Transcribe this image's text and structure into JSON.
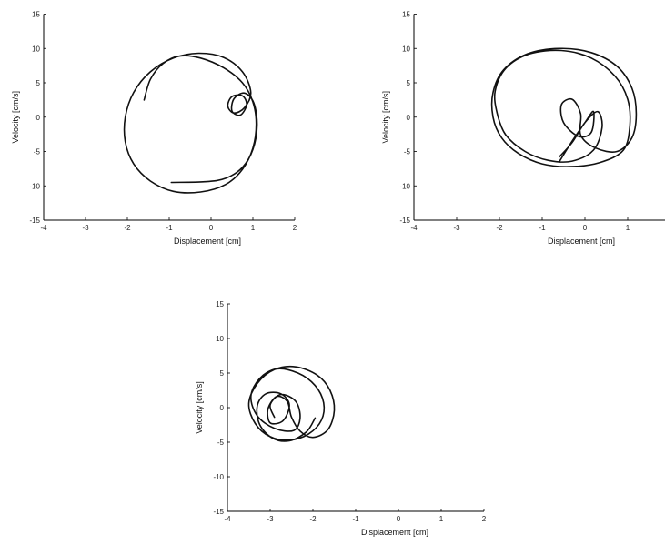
{
  "chart_data": [
    {
      "type": "line",
      "title": "",
      "xlabel": "Displacement [cm]",
      "ylabel": "Velocity [cm/s]",
      "xlim": [
        -4,
        2
      ],
      "ylim": [
        -15,
        15
      ],
      "x_ticks": [
        "-4",
        "-3",
        "-2",
        "-1",
        "0",
        "1",
        "2"
      ],
      "y_ticks": [
        "-15",
        "-10",
        "-5",
        "0",
        "5",
        "10",
        "15"
      ],
      "series": [
        {
          "points": [
            [
              -1.6,
              2.5
            ],
            [
              -1.45,
              5.5
            ],
            [
              -1.15,
              7.8
            ],
            [
              -0.75,
              8.9
            ],
            [
              -0.25,
              8.6
            ],
            [
              0.3,
              7.2
            ],
            [
              0.75,
              5.0
            ],
            [
              1.0,
              2.2
            ],
            [
              1.08,
              -1.0
            ],
            [
              1.0,
              -4.5
            ],
            [
              0.75,
              -7.6
            ],
            [
              0.35,
              -9.8
            ],
            [
              -0.25,
              -10.9
            ],
            [
              -0.9,
              -10.8
            ],
            [
              -1.45,
              -9.3
            ],
            [
              -1.85,
              -6.8
            ],
            [
              -2.05,
              -3.6
            ],
            [
              -2.05,
              0.0
            ],
            [
              -1.85,
              3.6
            ],
            [
              -1.45,
              6.6
            ],
            [
              -0.9,
              8.6
            ],
            [
              -0.3,
              9.3
            ],
            [
              0.3,
              8.7
            ],
            [
              0.75,
              6.6
            ],
            [
              0.95,
              3.6
            ],
            [
              0.8,
              1.4
            ],
            [
              0.55,
              0.6
            ],
            [
              0.4,
              1.6
            ],
            [
              0.5,
              3.0
            ],
            [
              0.75,
              3.1
            ],
            [
              0.85,
              1.8
            ],
            [
              0.7,
              0.3
            ],
            [
              0.5,
              0.9
            ],
            [
              0.55,
              2.7
            ],
            [
              0.8,
              3.5
            ],
            [
              1.02,
              2.1
            ],
            [
              1.1,
              -1.2
            ],
            [
              1.0,
              -4.7
            ],
            [
              0.75,
              -7.3
            ],
            [
              0.35,
              -8.9
            ],
            [
              -0.15,
              -9.4
            ],
            [
              -0.95,
              -9.5
            ]
          ]
        }
      ]
    },
    {
      "type": "line",
      "title": "",
      "xlabel": "Displacement [cm]",
      "ylabel": "Velocity [cm/s]",
      "xlim": [
        -4,
        2
      ],
      "ylim": [
        -15,
        15
      ],
      "x_ticks": [
        "-4",
        "-3",
        "-2",
        "-1",
        "0",
        "1"
      ],
      "y_ticks": [
        "-15",
        "-10",
        "-5",
        "0",
        "5",
        "10",
        "15"
      ],
      "series": [
        {
          "points": [
            [
              -0.6,
              -6.5
            ],
            [
              -0.3,
              -3.5
            ],
            [
              0.0,
              -0.8
            ],
            [
              0.2,
              0.8
            ],
            [
              0.15,
              -2.2
            ],
            [
              -0.15,
              -2.8
            ],
            [
              -0.5,
              -0.8
            ],
            [
              -0.55,
              1.8
            ],
            [
              -0.3,
              2.6
            ],
            [
              -0.1,
              0.5
            ],
            [
              -0.1,
              -2.6
            ],
            [
              0.25,
              -4.5
            ],
            [
              0.75,
              -5.0
            ],
            [
              1.1,
              -3.0
            ],
            [
              1.2,
              0.5
            ],
            [
              1.1,
              4.2
            ],
            [
              0.75,
              7.4
            ],
            [
              0.15,
              9.4
            ],
            [
              -0.6,
              10.0
            ],
            [
              -1.35,
              9.2
            ],
            [
              -1.9,
              6.9
            ],
            [
              -2.15,
              3.6
            ],
            [
              -2.15,
              0.0
            ],
            [
              -1.95,
              -3.0
            ],
            [
              -1.55,
              -5.3
            ],
            [
              -1.0,
              -6.8
            ],
            [
              -0.35,
              -7.2
            ],
            [
              0.35,
              -6.6
            ],
            [
              0.9,
              -4.8
            ],
            [
              1.05,
              -1.2
            ],
            [
              1.0,
              2.6
            ],
            [
              0.7,
              6.0
            ],
            [
              0.15,
              8.6
            ],
            [
              -0.55,
              9.7
            ],
            [
              -1.3,
              9.2
            ],
            [
              -1.85,
              7.1
            ],
            [
              -2.1,
              3.8
            ],
            [
              -2.05,
              0.5
            ],
            [
              -1.85,
              -2.6
            ],
            [
              -1.4,
              -5.0
            ],
            [
              -0.85,
              -6.3
            ],
            [
              -0.3,
              -6.4
            ],
            [
              0.2,
              -4.8
            ],
            [
              0.4,
              -1.5
            ],
            [
              0.3,
              0.8
            ],
            [
              0.0,
              -0.8
            ],
            [
              -0.3,
              -3.7
            ],
            [
              -0.6,
              -5.8
            ]
          ]
        }
      ]
    },
    {
      "type": "line",
      "title": "",
      "xlabel": "Displacement [cm]",
      "ylabel": "Velocity [cm/s]",
      "xlim": [
        -4,
        2
      ],
      "ylim": [
        -15,
        15
      ],
      "x_ticks": [
        "-4",
        "-3",
        "-2",
        "-1",
        "0",
        "1",
        "2"
      ],
      "y_ticks": [
        "-15",
        "-10",
        "-5",
        "0",
        "5",
        "10",
        "15"
      ],
      "series": [
        {
          "points": [
            [
              -1.95,
              -1.5
            ],
            [
              -2.15,
              -3.5
            ],
            [
              -2.55,
              -4.8
            ],
            [
              -2.95,
              -4.4
            ],
            [
              -3.25,
              -2.4
            ],
            [
              -3.3,
              0.3
            ],
            [
              -3.1,
              2.0
            ],
            [
              -2.75,
              2.0
            ],
            [
              -2.55,
              0.4
            ],
            [
              -2.7,
              -1.9
            ],
            [
              -3.0,
              -2.2
            ],
            [
              -3.05,
              -0.2
            ],
            [
              -2.85,
              1.6
            ],
            [
              -2.6,
              0.9
            ],
            [
              -2.5,
              -1.4
            ],
            [
              -2.3,
              -3.4
            ],
            [
              -2.0,
              -4.3
            ],
            [
              -1.65,
              -3.2
            ],
            [
              -1.5,
              -0.4
            ],
            [
              -1.6,
              2.5
            ],
            [
              -1.9,
              4.7
            ],
            [
              -2.4,
              5.9
            ],
            [
              -2.9,
              5.5
            ],
            [
              -3.3,
              3.5
            ],
            [
              -3.5,
              0.6
            ],
            [
              -3.35,
              -2.3
            ],
            [
              -3.0,
              -4.2
            ],
            [
              -2.55,
              -4.7
            ],
            [
              -2.1,
              -3.8
            ],
            [
              -1.8,
              -1.8
            ],
            [
              -1.75,
              0.7
            ],
            [
              -1.95,
              3.2
            ],
            [
              -2.35,
              5.0
            ],
            [
              -2.85,
              5.6
            ],
            [
              -3.25,
              4.2
            ],
            [
              -3.45,
              1.6
            ],
            [
              -3.3,
              -1.2
            ],
            [
              -2.9,
              -3.0
            ],
            [
              -2.45,
              -3.3
            ],
            [
              -2.3,
              -1.5
            ],
            [
              -2.4,
              0.9
            ],
            [
              -2.75,
              1.9
            ],
            [
              -3.0,
              0.4
            ],
            [
              -2.9,
              -1.4
            ]
          ]
        }
      ]
    }
  ]
}
